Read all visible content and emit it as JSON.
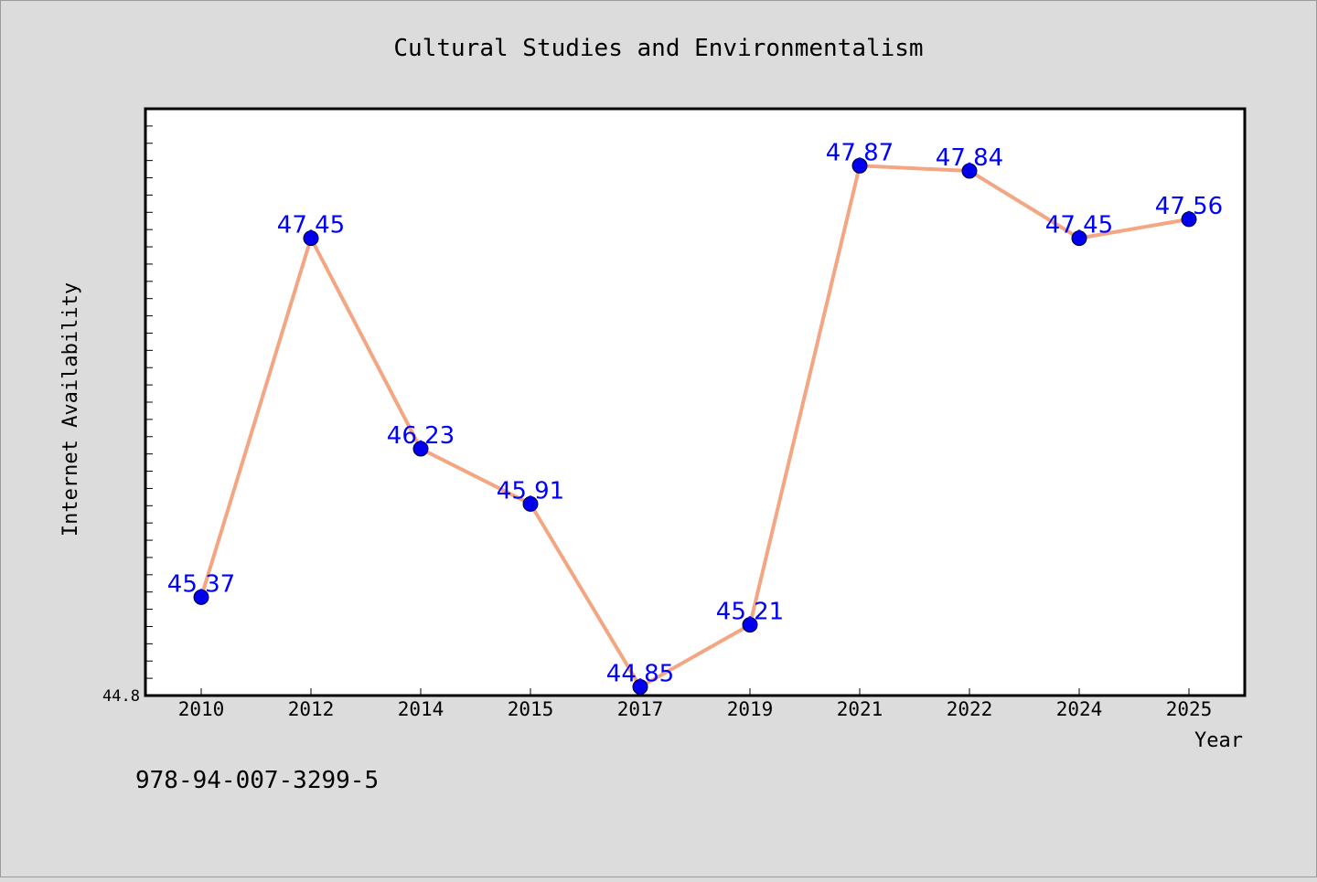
{
  "chart_data": {
    "type": "line",
    "title": "Cultural Studies and Environmentalism",
    "xlabel": "Year",
    "ylabel": "Internet Availability",
    "categories": [
      "2010",
      "2012",
      "2014",
      "2015",
      "2017",
      "2019",
      "2021",
      "2022",
      "2024",
      "2025"
    ],
    "series": [
      {
        "values": [
          45.37,
          47.45,
          46.23,
          45.91,
          44.85,
          45.21,
          47.87,
          47.84,
          47.45,
          47.56
        ]
      }
    ],
    "data_labels": [
      "45.37",
      "47.45",
      "46.23",
      "45.91",
      "44.85",
      "45.21",
      "47.87",
      "47.84",
      "47.45",
      "47.56"
    ],
    "y_tick_labels": [
      "44.8"
    ],
    "ylim": [
      44.8,
      48.2
    ],
    "grid": false,
    "legend": "none",
    "colors": {
      "background": "#dcdcdc",
      "plot_area": "#ffffff",
      "line": "#f4a582",
      "marker": "#0000ee",
      "label": "#0000ff"
    }
  },
  "footer_code": "978-94-007-3299-5"
}
